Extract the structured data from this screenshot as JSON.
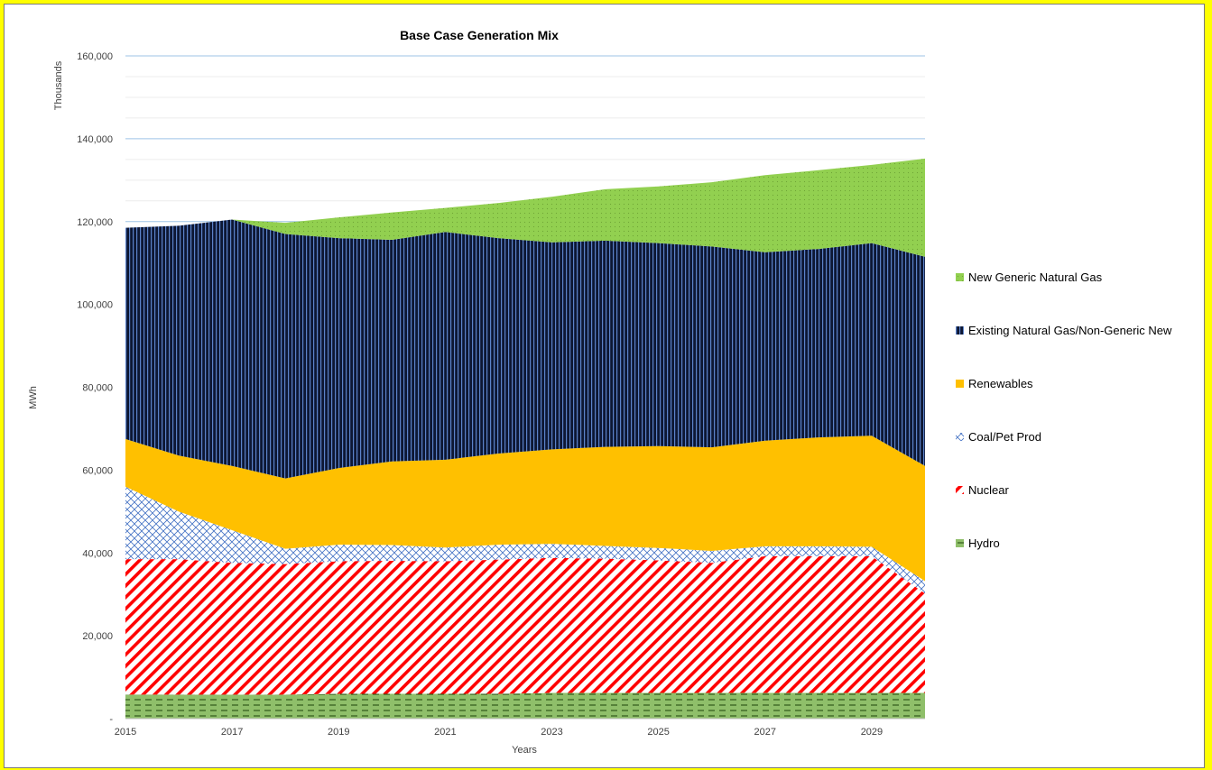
{
  "chart_data": {
    "type": "area",
    "stacked": true,
    "title": "Base Case Generation Mix",
    "xlabel": "Years",
    "ylabel": "MWh",
    "units_label": "Thousands",
    "x": [
      2015,
      2016,
      2017,
      2018,
      2019,
      2020,
      2021,
      2022,
      2023,
      2024,
      2025,
      2026,
      2027,
      2028,
      2029,
      2030
    ],
    "x_tick_labels": [
      "2015",
      "2017",
      "2019",
      "2021",
      "2023",
      "2025",
      "2027",
      "2029"
    ],
    "y_tick_labels": [
      "-",
      "20,000",
      "40,000",
      "60,000",
      "80,000",
      "100,000",
      "120,000",
      "140,000",
      "160,000"
    ],
    "ylim": [
      0,
      160000
    ],
    "grid": true,
    "legend_position": "right",
    "series": [
      {
        "name": "Hydro",
        "color": "#70ad47",
        "pattern": "dashed-horizontal",
        "values": [
          5800,
          5800,
          5800,
          5800,
          6000,
          6000,
          6000,
          6000,
          6200,
          6200,
          6200,
          6200,
          6200,
          6200,
          6200,
          6200
        ]
      },
      {
        "name": "Nuclear",
        "color": "#ff0000",
        "pattern": "diagonal-stripes",
        "values": [
          32700,
          32700,
          31800,
          31500,
          32000,
          32100,
          32000,
          32400,
          32600,
          32400,
          32000,
          31400,
          33000,
          33000,
          33000,
          24000
        ]
      },
      {
        "name": "Coal/Pet Prod",
        "color": "#4472c4",
        "pattern": "crosshatch",
        "values": [
          17500,
          11500,
          7900,
          3700,
          4000,
          3800,
          3300,
          3600,
          3400,
          3100,
          3000,
          2900,
          2400,
          2400,
          2300,
          3000
        ]
      },
      {
        "name": "Renewables",
        "color": "#ffc000",
        "pattern": "solid",
        "values": [
          11500,
          13500,
          15500,
          17000,
          18500,
          20200,
          21200,
          22000,
          22800,
          23900,
          24600,
          25000,
          25500,
          26300,
          26800,
          27800
        ]
      },
      {
        "name": "Existing Natural Gas/Non-Generic New",
        "color": "#1f2a50",
        "pattern": "vertical-stripes",
        "values": [
          51000,
          55500,
          59500,
          59000,
          55500,
          53500,
          55000,
          52000,
          50000,
          49800,
          49000,
          48500,
          45500,
          45500,
          46500,
          50500
        ]
      },
      {
        "name": "New Generic Natural Gas",
        "color": "#92d050",
        "pattern": "dotted",
        "values": [
          0,
          0,
          0,
          2700,
          5000,
          6600,
          5800,
          8500,
          11000,
          12400,
          13700,
          15500,
          18600,
          19000,
          18900,
          23700
        ]
      }
    ]
  }
}
